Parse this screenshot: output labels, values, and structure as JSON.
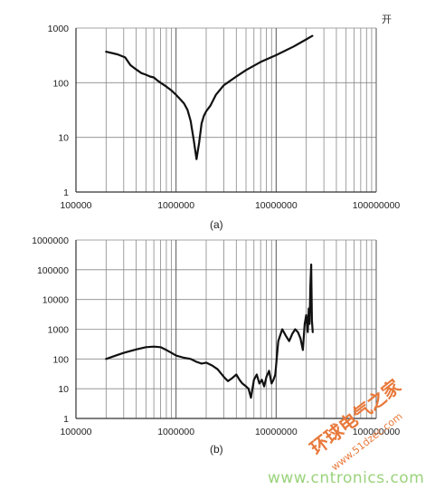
{
  "corner_text": "开",
  "watermark": {
    "site_name": "环球电气之家",
    "url_small": "www.51dzec.com",
    "url_large": "www.cntronics.com"
  },
  "chart_data": [
    {
      "type": "line",
      "caption": "(a)",
      "x_scale": "log",
      "y_scale": "log",
      "xlim": [
        100000,
        100000000
      ],
      "ylim": [
        1,
        1000
      ],
      "grid": true,
      "x_ticks": [
        "100000",
        "1000000",
        "10000000",
        "100000000"
      ],
      "y_ticks": [
        "1",
        "10",
        "100",
        "1000"
      ],
      "series": [
        {
          "x": [
            200000,
            260000,
            310000,
            350000,
            400000,
            450000,
            500000,
            550000,
            600000,
            650000,
            700000,
            800000,
            900000,
            1000000,
            1100000,
            1200000,
            1300000,
            1400000,
            1500000,
            1600000,
            1700000,
            1800000,
            1900000,
            2000000,
            2200000,
            2500000,
            3000000,
            4000000,
            5000000,
            7000000,
            10000000,
            15000000,
            20000000,
            23000000
          ],
          "y": [
            370,
            330,
            290,
            210,
            175,
            150,
            140,
            130,
            125,
            110,
            100,
            85,
            72,
            60,
            50,
            42,
            32,
            20,
            9,
            4,
            8,
            18,
            25,
            30,
            38,
            60,
            90,
            130,
            170,
            240,
            320,
            460,
            620,
            720
          ]
        }
      ]
    },
    {
      "type": "line",
      "caption": "(b)",
      "x_scale": "log",
      "y_scale": "log",
      "xlim": [
        100000,
        100000000
      ],
      "ylim": [
        1,
        1000000
      ],
      "grid": true,
      "x_ticks": [
        "100000",
        "1000000",
        "10000000",
        "100000000"
      ],
      "y_ticks": [
        "1",
        "10",
        "100",
        "1000",
        "10000",
        "100000",
        "1000000"
      ],
      "series": [
        {
          "x": [
            200000,
            250000,
            300000,
            400000,
            500000,
            600000,
            700000,
            800000,
            900000,
            1000000,
            1200000,
            1400000,
            1600000,
            1800000,
            2000000,
            2300000,
            2600000,
            3000000,
            3300000,
            3600000,
            4000000,
            4300000,
            4600000,
            5000000,
            5300000,
            5600000,
            6000000,
            6400000,
            6800000,
            7200000,
            7600000,
            8000000,
            8500000,
            9000000,
            9400000,
            9800000,
            10500000,
            11500000,
            12500000,
            13500000,
            14500000,
            15500000,
            16500000,
            17500000,
            18500000,
            19300000,
            20000000,
            20700000,
            21200000,
            21600000,
            22000000,
            22400000,
            22800000,
            23200000
          ],
          "y": [
            100,
            130,
            160,
            210,
            250,
            260,
            250,
            200,
            160,
            130,
            110,
            100,
            80,
            70,
            75,
            60,
            45,
            25,
            18,
            22,
            30,
            20,
            15,
            12,
            10,
            5,
            20,
            30,
            15,
            20,
            12,
            25,
            40,
            15,
            20,
            30,
            400,
            1000,
            600,
            400,
            700,
            1000,
            800,
            500,
            200,
            1500,
            3000,
            800,
            5000,
            1500,
            30000,
            150000,
            2000,
            800
          ]
        }
      ]
    }
  ]
}
